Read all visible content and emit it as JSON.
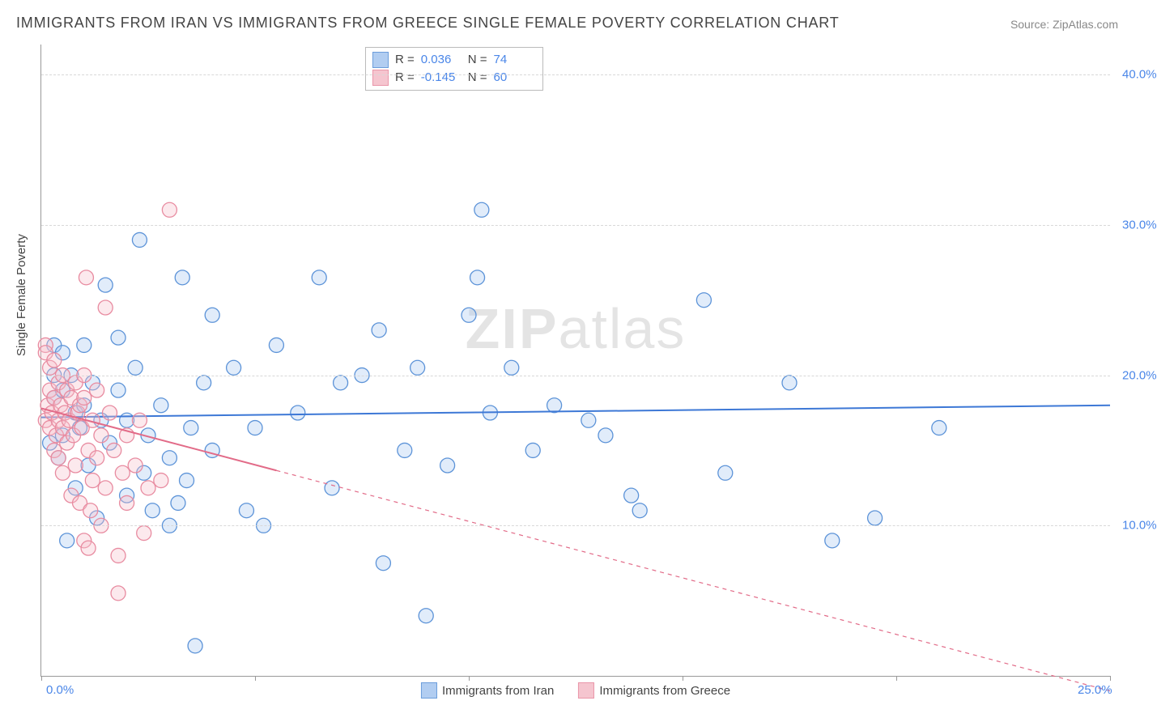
{
  "title": "IMMIGRANTS FROM IRAN VS IMMIGRANTS FROM GREECE SINGLE FEMALE POVERTY CORRELATION CHART",
  "source": "Source: ZipAtlas.com",
  "watermark": {
    "bold": "ZIP",
    "rest": "atlas"
  },
  "yaxis_label": "Single Female Poverty",
  "chart": {
    "type": "scatter",
    "background_color": "#ffffff",
    "grid_color": "#d8d8d8",
    "axis_color": "#999999",
    "xlim": [
      0,
      25
    ],
    "ylim": [
      0,
      42
    ],
    "xticks": [
      0,
      5,
      10,
      15,
      20,
      25
    ],
    "xtick_labels_shown": {
      "0": "0.0%",
      "25": "25.0%"
    },
    "yticks": [
      10,
      20,
      30,
      40
    ],
    "ytick_labels": [
      "10.0%",
      "20.0%",
      "30.0%",
      "40.0%"
    ],
    "marker_radius": 9,
    "marker_stroke_width": 1.3,
    "marker_fill_opacity": 0.35,
    "line_width": 2,
    "series": [
      {
        "name": "Immigrants from Iran",
        "color_fill": "#a9c8f0",
        "color_stroke": "#5c93d8",
        "line_color": "#3d78d6",
        "R": "0.036",
        "N": "74",
        "trend": {
          "x1": 0,
          "y1": 17.2,
          "x2": 25,
          "y2": 18.0,
          "dashed_after_x": null
        },
        "points": [
          [
            0.2,
            15.5
          ],
          [
            0.3,
            22.0
          ],
          [
            0.3,
            20.0
          ],
          [
            0.3,
            18.5
          ],
          [
            0.4,
            14.5
          ],
          [
            0.5,
            21.5
          ],
          [
            0.5,
            16.0
          ],
          [
            0.5,
            19.0
          ],
          [
            0.6,
            9.0
          ],
          [
            0.7,
            20.0
          ],
          [
            0.8,
            17.5
          ],
          [
            0.8,
            12.5
          ],
          [
            0.9,
            16.5
          ],
          [
            1.0,
            22.0
          ],
          [
            1.0,
            18.0
          ],
          [
            1.1,
            14.0
          ],
          [
            1.2,
            19.5
          ],
          [
            1.3,
            10.5
          ],
          [
            1.4,
            17.0
          ],
          [
            1.5,
            26.0
          ],
          [
            1.6,
            15.5
          ],
          [
            1.8,
            19.0
          ],
          [
            1.8,
            22.5
          ],
          [
            2.0,
            12.0
          ],
          [
            2.0,
            17.0
          ],
          [
            2.2,
            20.5
          ],
          [
            2.3,
            29.0
          ],
          [
            2.4,
            13.5
          ],
          [
            2.5,
            16.0
          ],
          [
            2.6,
            11.0
          ],
          [
            2.8,
            18.0
          ],
          [
            3.0,
            14.5
          ],
          [
            3.0,
            10.0
          ],
          [
            3.2,
            11.5
          ],
          [
            3.3,
            26.5
          ],
          [
            3.4,
            13.0
          ],
          [
            3.5,
            16.5
          ],
          [
            3.6,
            2.0
          ],
          [
            3.8,
            19.5
          ],
          [
            4.0,
            15.0
          ],
          [
            4.0,
            24.0
          ],
          [
            4.5,
            20.5
          ],
          [
            4.8,
            11.0
          ],
          [
            5.0,
            16.5
          ],
          [
            5.2,
            10.0
          ],
          [
            5.5,
            22.0
          ],
          [
            6.0,
            17.5
          ],
          [
            6.5,
            26.5
          ],
          [
            6.8,
            12.5
          ],
          [
            7.0,
            19.5
          ],
          [
            7.5,
            20.0
          ],
          [
            7.9,
            23.0
          ],
          [
            8.0,
            7.5
          ],
          [
            8.5,
            15.0
          ],
          [
            8.8,
            20.5
          ],
          [
            9.0,
            4.0
          ],
          [
            9.5,
            14.0
          ],
          [
            10.0,
            24.0
          ],
          [
            10.2,
            26.5
          ],
          [
            10.3,
            31.0
          ],
          [
            10.5,
            17.5
          ],
          [
            11.0,
            20.5
          ],
          [
            11.5,
            15.0
          ],
          [
            12.0,
            18.0
          ],
          [
            12.8,
            17.0
          ],
          [
            13.2,
            16.0
          ],
          [
            13.8,
            12.0
          ],
          [
            15.5,
            25.0
          ],
          [
            17.5,
            19.5
          ],
          [
            18.5,
            9.0
          ],
          [
            19.5,
            10.5
          ],
          [
            21.0,
            16.5
          ],
          [
            16.0,
            13.5
          ],
          [
            14.0,
            11.0
          ]
        ]
      },
      {
        "name": "Immigrants from Greece",
        "color_fill": "#f5bfca",
        "color_stroke": "#e88ba0",
        "line_color": "#e26b88",
        "R": "-0.145",
        "N": "60",
        "trend": {
          "x1": 0,
          "y1": 17.8,
          "x2": 25,
          "y2": -1.0,
          "dashed_after_x": 5.5
        },
        "points": [
          [
            0.1,
            22.0
          ],
          [
            0.1,
            21.5
          ],
          [
            0.1,
            17.0
          ],
          [
            0.15,
            18.0
          ],
          [
            0.2,
            19.0
          ],
          [
            0.2,
            16.5
          ],
          [
            0.2,
            20.5
          ],
          [
            0.25,
            17.5
          ],
          [
            0.3,
            15.0
          ],
          [
            0.3,
            18.5
          ],
          [
            0.3,
            21.0
          ],
          [
            0.35,
            16.0
          ],
          [
            0.4,
            19.5
          ],
          [
            0.4,
            14.5
          ],
          [
            0.4,
            17.0
          ],
          [
            0.45,
            18.0
          ],
          [
            0.5,
            20.0
          ],
          [
            0.5,
            16.5
          ],
          [
            0.5,
            13.5
          ],
          [
            0.55,
            17.5
          ],
          [
            0.6,
            19.0
          ],
          [
            0.6,
            15.5
          ],
          [
            0.65,
            17.0
          ],
          [
            0.7,
            18.5
          ],
          [
            0.7,
            12.0
          ],
          [
            0.75,
            16.0
          ],
          [
            0.8,
            19.5
          ],
          [
            0.8,
            14.0
          ],
          [
            0.85,
            17.5
          ],
          [
            0.9,
            18.0
          ],
          [
            0.9,
            11.5
          ],
          [
            0.95,
            16.5
          ],
          [
            1.0,
            18.5
          ],
          [
            1.0,
            20.0
          ],
          [
            1.0,
            9.0
          ],
          [
            1.05,
            26.5
          ],
          [
            1.1,
            15.0
          ],
          [
            1.1,
            8.5
          ],
          [
            1.15,
            11.0
          ],
          [
            1.2,
            17.0
          ],
          [
            1.2,
            13.0
          ],
          [
            1.3,
            14.5
          ],
          [
            1.3,
            19.0
          ],
          [
            1.4,
            16.0
          ],
          [
            1.4,
            10.0
          ],
          [
            1.5,
            24.5
          ],
          [
            1.5,
            12.5
          ],
          [
            1.6,
            17.5
          ],
          [
            1.7,
            15.0
          ],
          [
            1.8,
            8.0
          ],
          [
            1.8,
            5.5
          ],
          [
            1.9,
            13.5
          ],
          [
            2.0,
            16.0
          ],
          [
            2.0,
            11.5
          ],
          [
            2.2,
            14.0
          ],
          [
            2.3,
            17.0
          ],
          [
            2.4,
            9.5
          ],
          [
            2.5,
            12.5
          ],
          [
            2.8,
            13.0
          ],
          [
            3.0,
            31.0
          ]
        ]
      }
    ]
  },
  "stats_box": {
    "R_label": "R  =",
    "N_label": "N  ="
  },
  "legend": {
    "items": [
      "Immigrants from Iran",
      "Immigrants from Greece"
    ]
  }
}
